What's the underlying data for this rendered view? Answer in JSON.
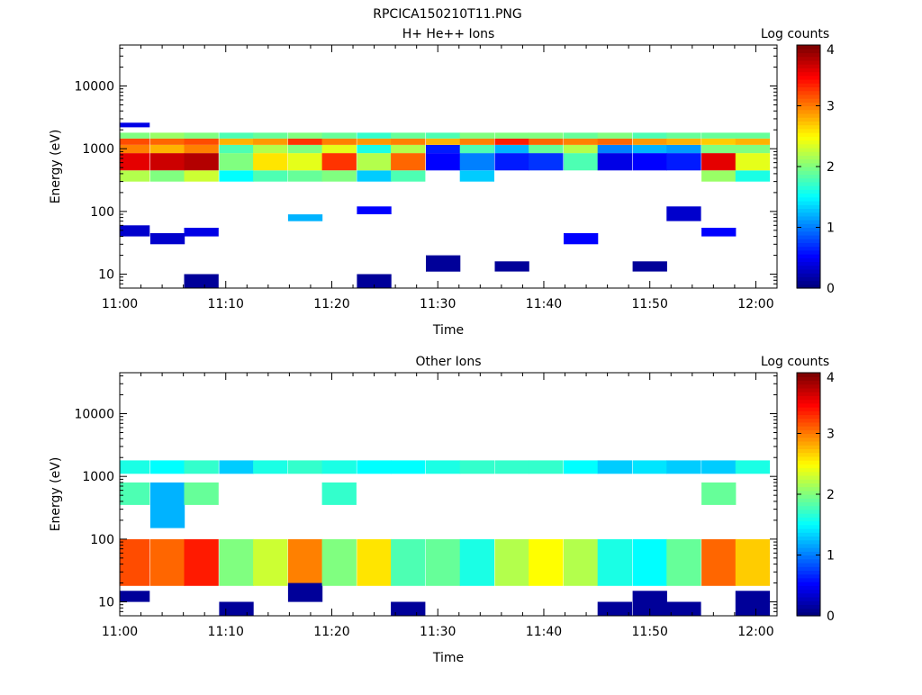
{
  "figure": {
    "title": "RPCICA150210T11.PNG"
  },
  "chart_data": [
    {
      "type": "heatmap",
      "title": "H+ He++ Ions",
      "xlabel": "Time",
      "ylabel": "Energy (eV)",
      "x_ticks": [
        "11:00",
        "11:10",
        "11:20",
        "11:30",
        "11:40",
        "11:50",
        "12:00"
      ],
      "y_ticks": [
        "10",
        "100",
        "1000",
        "10000"
      ],
      "y_scale": "log",
      "ylim": [
        6,
        45000
      ],
      "xlim_minutes": [
        0,
        62
      ],
      "colorbar": {
        "label": "Log counts",
        "ticks": [
          "0",
          "1",
          "2",
          "3",
          "4"
        ],
        "range": [
          0,
          4
        ],
        "colormap": "jet"
      },
      "cell_width_minutes": 3.25,
      "columns": [
        {
          "t": 1.2,
          "bands": [
            [
              450,
              850,
              3.6
            ],
            [
              850,
              1150,
              3.0
            ],
            [
              1150,
              1450,
              3.2
            ],
            [
              1450,
              1800,
              2.0
            ],
            [
              300,
              450,
              2.2
            ],
            [
              40,
              60,
              0.3
            ],
            [
              2200,
              2600,
              0.4
            ]
          ]
        },
        {
          "t": 4.5,
          "bands": [
            [
              450,
              850,
              3.7
            ],
            [
              850,
              1150,
              2.8
            ],
            [
              1150,
              1450,
              3.1
            ],
            [
              1450,
              1800,
              2.1
            ],
            [
              300,
              450,
              2.0
            ],
            [
              30,
              45,
              0.3
            ]
          ]
        },
        {
          "t": 7.7,
          "bands": [
            [
              450,
              850,
              3.8
            ],
            [
              850,
              1150,
              3.0
            ],
            [
              1150,
              1450,
              3.2
            ],
            [
              1450,
              1800,
              2.0
            ],
            [
              300,
              450,
              2.3
            ],
            [
              6,
              10,
              0.1
            ],
            [
              40,
              55,
              0.4
            ]
          ]
        },
        {
          "t": 11.0,
          "bands": [
            [
              450,
              850,
              2.0
            ],
            [
              850,
              1150,
              1.8
            ],
            [
              1150,
              1450,
              2.8
            ],
            [
              1450,
              1800,
              1.8
            ],
            [
              300,
              450,
              1.5
            ]
          ]
        },
        {
          "t": 14.2,
          "bands": [
            [
              450,
              850,
              2.6
            ],
            [
              850,
              1150,
              2.2
            ],
            [
              1150,
              1450,
              2.9
            ],
            [
              1450,
              1800,
              1.9
            ],
            [
              300,
              450,
              1.8
            ]
          ]
        },
        {
          "t": 17.5,
          "bands": [
            [
              450,
              850,
              2.4
            ],
            [
              850,
              1150,
              2.0
            ],
            [
              1150,
              1450,
              3.3
            ],
            [
              1450,
              1800,
              2.0
            ],
            [
              300,
              450,
              1.9
            ],
            [
              70,
              90,
              1.2
            ]
          ]
        },
        {
          "t": 20.7,
          "bands": [
            [
              450,
              850,
              3.3
            ],
            [
              850,
              1150,
              2.4
            ],
            [
              1150,
              1450,
              3.0
            ],
            [
              1450,
              1800,
              1.9
            ],
            [
              300,
              450,
              2.0
            ]
          ]
        },
        {
          "t": 24.0,
          "bands": [
            [
              450,
              850,
              2.2
            ],
            [
              850,
              1150,
              1.6
            ],
            [
              1150,
              1450,
              2.9
            ],
            [
              1450,
              1800,
              1.7
            ],
            [
              300,
              450,
              1.3
            ],
            [
              6,
              10,
              0.1
            ],
            [
              90,
              120,
              0.5
            ]
          ]
        },
        {
          "t": 27.2,
          "bands": [
            [
              450,
              850,
              3.1
            ],
            [
              850,
              1150,
              2.2
            ],
            [
              1150,
              1450,
              3.0
            ],
            [
              1450,
              1800,
              1.9
            ],
            [
              300,
              450,
              1.8
            ]
          ]
        },
        {
          "t": 30.5,
          "bands": [
            [
              450,
              850,
              0.5
            ],
            [
              850,
              1150,
              0.6
            ],
            [
              1150,
              1450,
              2.8
            ],
            [
              1450,
              1800,
              1.8
            ],
            [
              11,
              20,
              0.1
            ]
          ]
        },
        {
          "t": 33.7,
          "bands": [
            [
              450,
              850,
              1.0
            ],
            [
              850,
              1150,
              1.8
            ],
            [
              1150,
              1450,
              3.0
            ],
            [
              1450,
              1800,
              2.0
            ],
            [
              300,
              450,
              1.3
            ]
          ]
        },
        {
          "t": 37.0,
          "bands": [
            [
              450,
              850,
              0.6
            ],
            [
              850,
              1150,
              1.2
            ],
            [
              1150,
              1450,
              3.4
            ],
            [
              1450,
              1800,
              2.0
            ],
            [
              11,
              16,
              0.1
            ]
          ]
        },
        {
          "t": 40.2,
          "bands": [
            [
              450,
              850,
              0.7
            ],
            [
              850,
              1150,
              1.9
            ],
            [
              1150,
              1450,
              3.1
            ],
            [
              1450,
              1800,
              2.0
            ]
          ]
        },
        {
          "t": 43.5,
          "bands": [
            [
              450,
              850,
              1.8
            ],
            [
              850,
              1150,
              2.2
            ],
            [
              1150,
              1450,
              3.0
            ],
            [
              1450,
              1800,
              1.9
            ],
            [
              30,
              45,
              0.5
            ]
          ]
        },
        {
          "t": 46.7,
          "bands": [
            [
              450,
              850,
              0.4
            ],
            [
              850,
              1150,
              1.0
            ],
            [
              1150,
              1450,
              3.1
            ],
            [
              1450,
              1800,
              2.0
            ]
          ]
        },
        {
          "t": 50.0,
          "bands": [
            [
              450,
              850,
              0.5
            ],
            [
              850,
              1150,
              1.2
            ],
            [
              1150,
              1450,
              2.9
            ],
            [
              1450,
              1800,
              1.8
            ],
            [
              11,
              16,
              0.1
            ]
          ]
        },
        {
          "t": 53.2,
          "bands": [
            [
              450,
              850,
              0.6
            ],
            [
              850,
              1150,
              1.1
            ],
            [
              1150,
              1450,
              2.8
            ],
            [
              1450,
              1800,
              1.9
            ],
            [
              70,
              120,
              0.3
            ]
          ]
        },
        {
          "t": 56.5,
          "bands": [
            [
              450,
              850,
              3.6
            ],
            [
              850,
              1150,
              2.0
            ],
            [
              1150,
              1450,
              2.7
            ],
            [
              1450,
              1800,
              1.9
            ],
            [
              300,
              450,
              2.1
            ],
            [
              40,
              55,
              0.5
            ]
          ]
        },
        {
          "t": 59.7,
          "bands": [
            [
              450,
              850,
              2.4
            ],
            [
              850,
              1150,
              2.0
            ],
            [
              1150,
              1450,
              2.8
            ],
            [
              1450,
              1800,
              1.9
            ],
            [
              300,
              450,
              1.6
            ]
          ]
        }
      ]
    },
    {
      "type": "heatmap",
      "title": "Other Ions",
      "xlabel": "Time",
      "ylabel": "Energy (eV)",
      "x_ticks": [
        "11:00",
        "11:10",
        "11:20",
        "11:30",
        "11:40",
        "11:50",
        "12:00"
      ],
      "y_ticks": [
        "10",
        "100",
        "1000",
        "10000"
      ],
      "y_scale": "log",
      "ylim": [
        6,
        45000
      ],
      "xlim_minutes": [
        0,
        62
      ],
      "colorbar": {
        "label": "Log counts",
        "ticks": [
          "0",
          "1",
          "2",
          "3",
          "4"
        ],
        "range": [
          0,
          4
        ],
        "colormap": "jet"
      },
      "cell_width_minutes": 3.25,
      "columns": [
        {
          "t": 1.2,
          "bands": [
            [
              18,
              100,
              3.2
            ],
            [
              1100,
              1800,
              1.6
            ],
            [
              350,
              800,
              1.8
            ],
            [
              10,
              15,
              0.1
            ]
          ]
        },
        {
          "t": 4.5,
          "bands": [
            [
              18,
              100,
              3.1
            ],
            [
              1100,
              1800,
              1.5
            ],
            [
              150,
              800,
              1.2
            ]
          ]
        },
        {
          "t": 7.7,
          "bands": [
            [
              18,
              100,
              3.4
            ],
            [
              1100,
              1800,
              1.7
            ],
            [
              350,
              800,
              1.9
            ]
          ]
        },
        {
          "t": 11.0,
          "bands": [
            [
              18,
              100,
              2.0
            ],
            [
              1100,
              1800,
              1.3
            ],
            [
              6,
              10,
              0.1
            ]
          ]
        },
        {
          "t": 14.2,
          "bands": [
            [
              18,
              100,
              2.3
            ],
            [
              1100,
              1800,
              1.6
            ]
          ]
        },
        {
          "t": 17.5,
          "bands": [
            [
              18,
              100,
              3.0
            ],
            [
              1100,
              1800,
              1.7
            ],
            [
              10,
              20,
              0.1
            ]
          ]
        },
        {
          "t": 20.7,
          "bands": [
            [
              18,
              100,
              2.0
            ],
            [
              1100,
              1800,
              1.6
            ],
            [
              350,
              800,
              1.7
            ]
          ]
        },
        {
          "t": 24.0,
          "bands": [
            [
              18,
              100,
              2.6
            ],
            [
              1100,
              1800,
              1.5
            ]
          ]
        },
        {
          "t": 27.2,
          "bands": [
            [
              18,
              100,
              1.8
            ],
            [
              1100,
              1800,
              1.5
            ],
            [
              6,
              10,
              0.1
            ]
          ]
        },
        {
          "t": 30.5,
          "bands": [
            [
              18,
              100,
              1.9
            ],
            [
              1100,
              1800,
              1.6
            ]
          ]
        },
        {
          "t": 33.7,
          "bands": [
            [
              18,
              100,
              1.6
            ],
            [
              1100,
              1800,
              1.7
            ]
          ]
        },
        {
          "t": 37.0,
          "bands": [
            [
              18,
              100,
              2.2
            ],
            [
              1100,
              1800,
              1.7
            ]
          ]
        },
        {
          "t": 40.2,
          "bands": [
            [
              18,
              100,
              2.5
            ],
            [
              1100,
              1800,
              1.7
            ]
          ]
        },
        {
          "t": 43.5,
          "bands": [
            [
              18,
              100,
              2.2
            ],
            [
              1100,
              1800,
              1.5
            ]
          ]
        },
        {
          "t": 46.7,
          "bands": [
            [
              18,
              100,
              1.6
            ],
            [
              1100,
              1800,
              1.3
            ],
            [
              6,
              10,
              0.1
            ]
          ]
        },
        {
          "t": 50.0,
          "bands": [
            [
              18,
              100,
              1.5
            ],
            [
              1100,
              1800,
              1.4
            ],
            [
              6,
              15,
              0.1
            ]
          ]
        },
        {
          "t": 53.2,
          "bands": [
            [
              18,
              100,
              1.9
            ],
            [
              1100,
              1800,
              1.3
            ],
            [
              6,
              10,
              0.1
            ]
          ]
        },
        {
          "t": 56.5,
          "bands": [
            [
              18,
              100,
              3.1
            ],
            [
              1100,
              1800,
              1.3
            ],
            [
              350,
              800,
              1.9
            ]
          ]
        },
        {
          "t": 59.7,
          "bands": [
            [
              18,
              100,
              2.7
            ],
            [
              1100,
              1800,
              1.6
            ],
            [
              6,
              15,
              0.1
            ]
          ]
        }
      ]
    }
  ]
}
